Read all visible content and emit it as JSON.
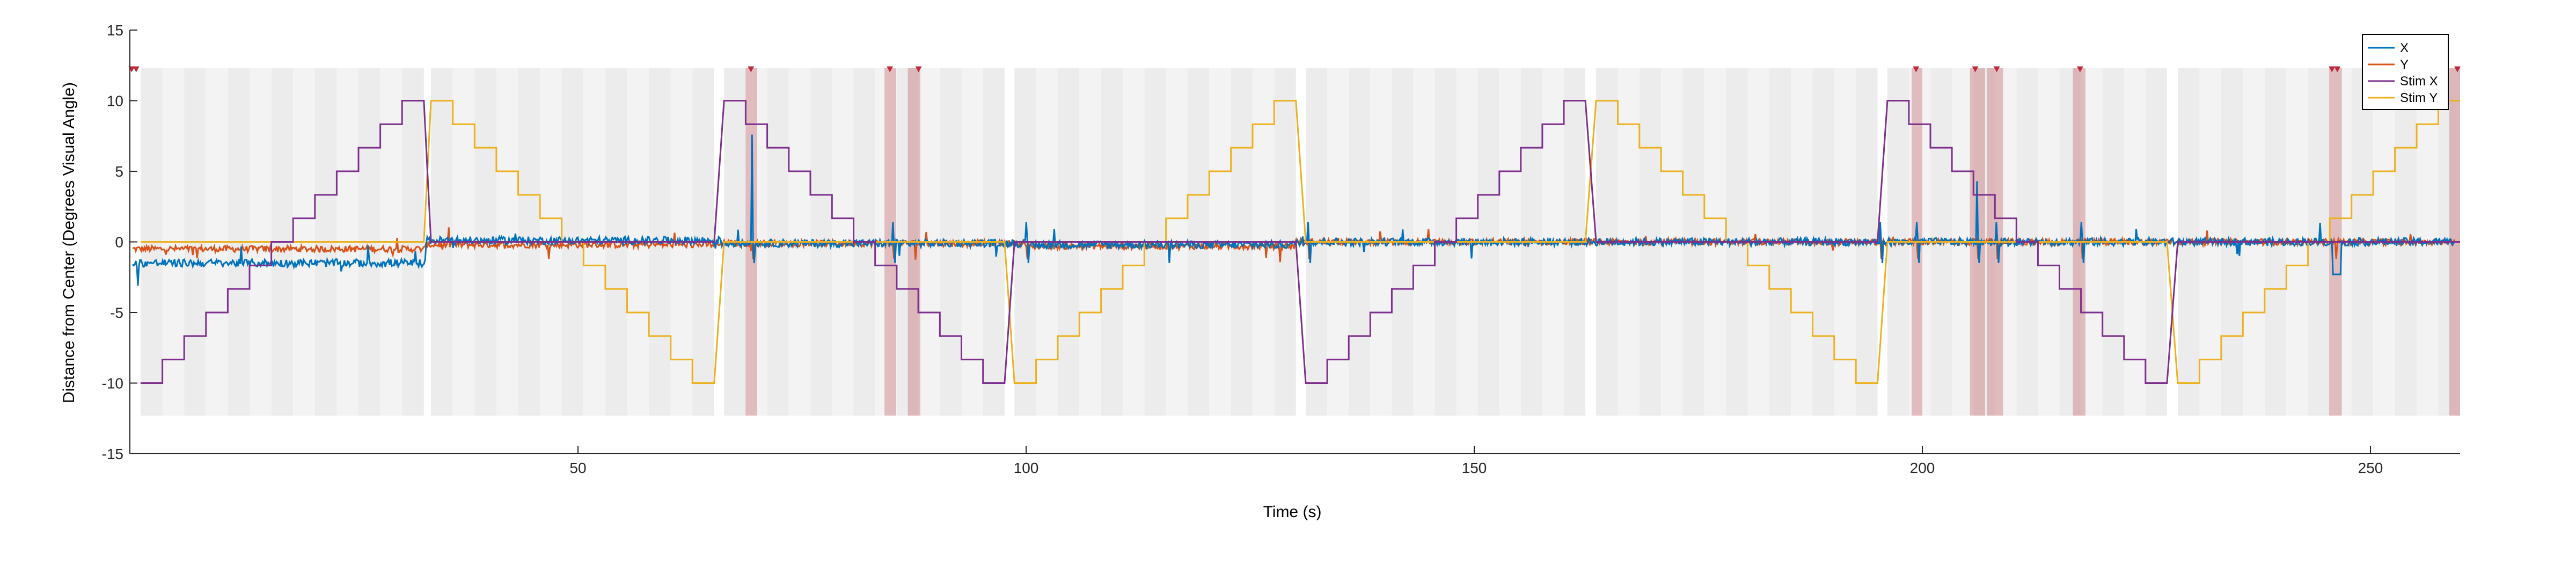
{
  "chart_data": {
    "type": "line",
    "xlabel": "Time (s)",
    "ylabel": "Distance from Center (Degrees Visual Angle)",
    "xlim": [
      0,
      260
    ],
    "ylim": [
      -15,
      15
    ],
    "x_ticks": [
      50,
      100,
      150,
      200,
      250
    ],
    "y_ticks": [
      -15,
      -10,
      -5,
      0,
      5,
      10,
      15
    ],
    "grid": false,
    "legend_position": "top-right",
    "series": [
      {
        "name": "X",
        "color": "#0072BD"
      },
      {
        "name": "Y",
        "color": "#D95319"
      },
      {
        "name": "Stim X",
        "color": "#7E2F8E"
      },
      {
        "name": "Stim Y",
        "color": "#EDB120"
      }
    ],
    "blocks": [
      {
        "start": 1.2,
        "end": 32.8,
        "stim": "X",
        "direction": "up"
      },
      {
        "start": 33.6,
        "end": 65.2,
        "stim": "Y",
        "direction": "down"
      },
      {
        "start": 66.3,
        "end": 97.6,
        "stim": "X",
        "direction": "down"
      },
      {
        "start": 98.7,
        "end": 130.1,
        "stim": "Y",
        "direction": "up"
      },
      {
        "start": 131.2,
        "end": 162.4,
        "stim": "X",
        "direction": "up"
      },
      {
        "start": 163.6,
        "end": 195.0,
        "stim": "Y",
        "direction": "down"
      },
      {
        "start": 196.1,
        "end": 227.3,
        "stim": "X",
        "direction": "down"
      },
      {
        "start": 228.5,
        "end": 260.0,
        "stim": "Y",
        "direction": "up"
      }
    ],
    "step_levels": [
      -10,
      -8.33,
      -6.67,
      -5,
      -3.33,
      -1.67,
      0,
      1.67,
      3.33,
      5,
      6.67,
      8.33,
      10
    ],
    "shaded_y_range": [
      -12.3,
      12.3
    ],
    "event_regions": [
      [
        68.7,
        70.0
      ],
      [
        84.2,
        85.5
      ],
      [
        86.8,
        88.2
      ],
      [
        198.8,
        200.0
      ],
      [
        205.3,
        207.0
      ],
      [
        207.2,
        209.0
      ],
      [
        216.8,
        218.2
      ],
      [
        245.4,
        246.8
      ],
      [
        258.8,
        260.0
      ]
    ],
    "event_markers": [
      0.2,
      0.7,
      69.3,
      84.8,
      88.0,
      199.3,
      205.9,
      208.3,
      217.6,
      245.7,
      246.3,
      259.7
    ],
    "marker_y": 12.2,
    "marker_color": "#c0283c"
  }
}
